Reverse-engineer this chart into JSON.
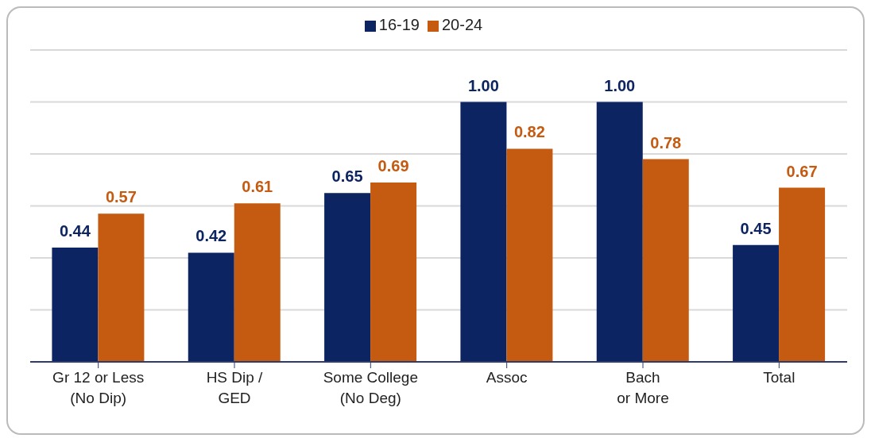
{
  "chart_data": {
    "type": "bar",
    "categories": [
      "Gr 12 or Less\n(No Dip)",
      "HS Dip /\nGED",
      "Some College\n(No Deg)",
      "Assoc",
      "Bach\nor More",
      "Total"
    ],
    "series": [
      {
        "name": "16-19",
        "color": "#0c2461",
        "values": [
          0.44,
          0.42,
          0.65,
          1.0,
          1.0,
          0.45
        ],
        "value_labels": [
          "0.44",
          "0.42",
          "0.65",
          "1.00",
          "1.00",
          "0.45"
        ]
      },
      {
        "name": "20-24",
        "color": "#c55a11",
        "values": [
          0.57,
          0.61,
          0.69,
          0.82,
          0.78,
          0.67
        ],
        "value_labels": [
          "0.57",
          "0.61",
          "0.69",
          "0.82",
          "0.78",
          "0.67"
        ]
      }
    ],
    "ylim": [
      0,
      1.2
    ],
    "grid": "y",
    "legend": "top",
    "tick_labels": "x"
  }
}
